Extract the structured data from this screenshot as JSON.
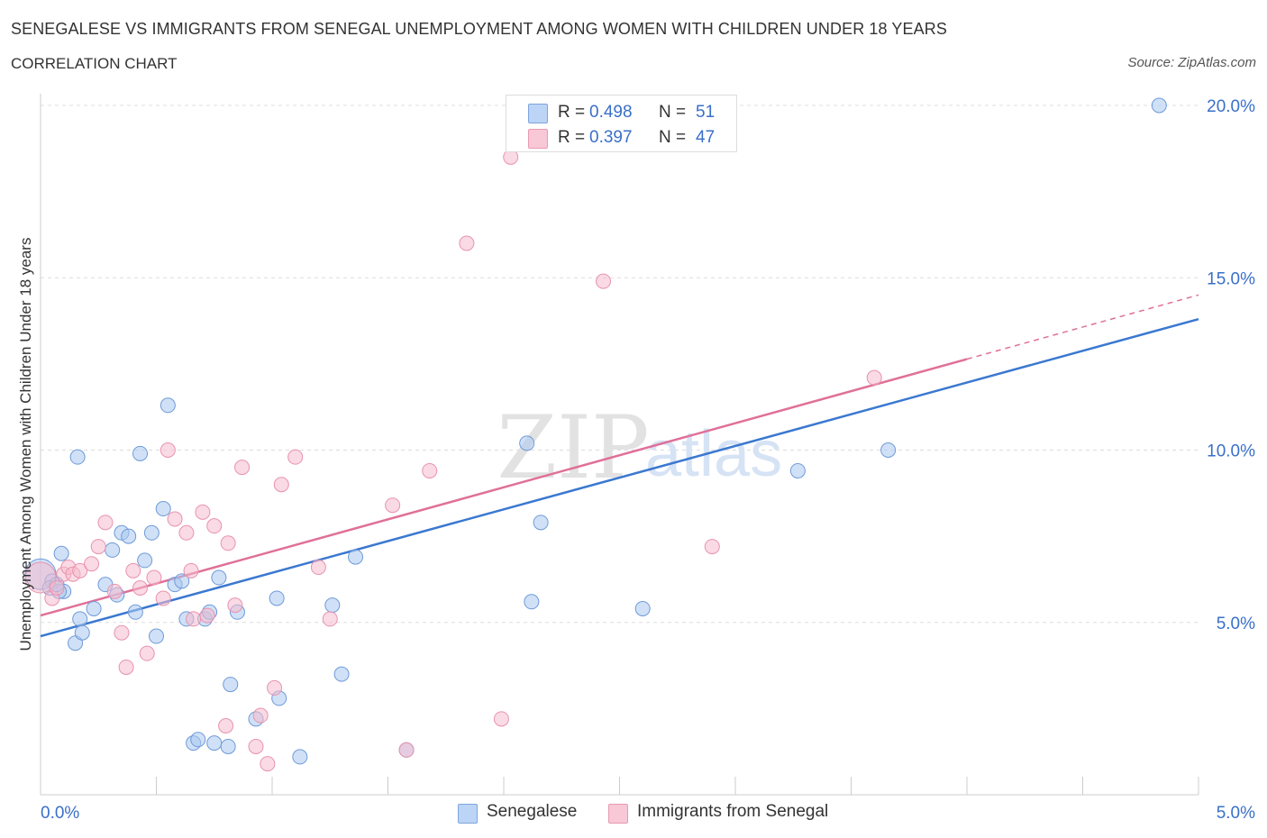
{
  "header": {
    "title": "SENEGALESE VS IMMIGRANTS FROM SENEGAL UNEMPLOYMENT AMONG WOMEN WITH CHILDREN UNDER 18 YEARS",
    "subtitle": "CORRELATION CHART",
    "source": "Source: ZipAtlas.com"
  },
  "watermark": {
    "zip": "ZIP",
    "atlas": "atlas"
  },
  "stats_legend": {
    "rows": [
      {
        "r_label": "R =",
        "r_value": "0.498",
        "n_label": "N =",
        "n_value": "51"
      },
      {
        "r_label": "R =",
        "r_value": "0.397",
        "n_label": "N =",
        "n_value": "47"
      }
    ]
  },
  "colors": {
    "series1_fill": "#aac8f0",
    "series1_stroke": "#6e9ad8",
    "series1_line": "#3a78d0",
    "series2_fill": "#f6bccd",
    "series2_stroke": "#e893ae",
    "series2_line": "#e07098",
    "axis_text": "#3a6fc9",
    "grid": "#dddddd"
  },
  "chart_data": {
    "type": "scatter",
    "title": "SENEGALESE VS IMMIGRANTS FROM SENEGAL UNEMPLOYMENT AMONG WOMEN WITH CHILDREN UNDER 18 YEARS",
    "xlabel": "",
    "ylabel": "Unemployment Among Women with Children Under 18 years",
    "xlim": [
      0,
      5
    ],
    "ylim": [
      0,
      20
    ],
    "x_tick_labels": [
      "0.0%",
      "5.0%"
    ],
    "y_ticks": [
      5,
      10,
      15,
      20
    ],
    "y_tick_labels": [
      "5.0%",
      "10.0%",
      "15.0%",
      "20.0%"
    ],
    "grid": "horizontal dashed",
    "legend_position": "bottom-center",
    "series": [
      {
        "name": "Senegalese",
        "R": 0.498,
        "N": 51,
        "trend": {
          "x0": 0.0,
          "y0": 4.6,
          "x1": 5.0,
          "y1": 13.8,
          "dashed_from": null
        },
        "points": [
          [
            0.0,
            6.4
          ],
          [
            0.05,
            6.2
          ],
          [
            0.1,
            5.9
          ],
          [
            0.09,
            7.0
          ],
          [
            0.15,
            4.4
          ],
          [
            0.17,
            5.1
          ],
          [
            0.23,
            5.4
          ],
          [
            0.18,
            4.7
          ],
          [
            0.28,
            6.1
          ],
          [
            0.31,
            7.1
          ],
          [
            0.33,
            5.8
          ],
          [
            0.35,
            7.6
          ],
          [
            0.38,
            7.5
          ],
          [
            0.41,
            5.3
          ],
          [
            0.45,
            6.8
          ],
          [
            0.48,
            7.6
          ],
          [
            0.5,
            4.6
          ],
          [
            0.53,
            8.3
          ],
          [
            0.55,
            11.3
          ],
          [
            0.58,
            6.1
          ],
          [
            0.61,
            6.2
          ],
          [
            0.63,
            5.1
          ],
          [
            0.66,
            1.5
          ],
          [
            0.68,
            1.6
          ],
          [
            0.71,
            5.1
          ],
          [
            0.73,
            5.3
          ],
          [
            0.75,
            1.5
          ],
          [
            0.77,
            6.3
          ],
          [
            0.81,
            1.4
          ],
          [
            0.82,
            3.2
          ],
          [
            0.85,
            5.3
          ],
          [
            0.93,
            2.2
          ],
          [
            1.02,
            5.7
          ],
          [
            1.03,
            2.8
          ],
          [
            1.12,
            1.1
          ],
          [
            1.26,
            5.5
          ],
          [
            1.3,
            3.5
          ],
          [
            1.36,
            6.9
          ],
          [
            1.58,
            1.3
          ],
          [
            2.1,
            10.2
          ],
          [
            2.12,
            5.6
          ],
          [
            2.16,
            7.9
          ],
          [
            2.6,
            5.4
          ],
          [
            3.27,
            9.4
          ],
          [
            3.66,
            10.0
          ],
          [
            4.83,
            20.0
          ],
          [
            0.16,
            9.8
          ],
          [
            0.43,
            9.9
          ],
          [
            0.04,
            6.0
          ],
          [
            0.08,
            5.9
          ],
          [
            0.07,
            6.1
          ]
        ]
      },
      {
        "name": "Immigrants from Senegal",
        "R": 0.397,
        "N": 47,
        "trend": {
          "x0": 0.0,
          "y0": 5.2,
          "x1": 5.0,
          "y1": 14.5,
          "dashed_from": 4.0
        },
        "points": [
          [
            0.0,
            6.3
          ],
          [
            0.05,
            5.7
          ],
          [
            0.07,
            6.0
          ],
          [
            0.1,
            6.4
          ],
          [
            0.12,
            6.6
          ],
          [
            0.14,
            6.4
          ],
          [
            0.17,
            6.5
          ],
          [
            0.22,
            6.7
          ],
          [
            0.25,
            7.2
          ],
          [
            0.28,
            7.9
          ],
          [
            0.32,
            5.9
          ],
          [
            0.35,
            4.7
          ],
          [
            0.37,
            3.7
          ],
          [
            0.4,
            6.5
          ],
          [
            0.43,
            6.0
          ],
          [
            0.46,
            4.1
          ],
          [
            0.49,
            6.3
          ],
          [
            0.53,
            5.7
          ],
          [
            0.55,
            10.0
          ],
          [
            0.58,
            8.0
          ],
          [
            0.63,
            7.6
          ],
          [
            0.65,
            6.5
          ],
          [
            0.7,
            8.2
          ],
          [
            0.72,
            5.2
          ],
          [
            0.75,
            7.8
          ],
          [
            0.8,
            2.0
          ],
          [
            0.81,
            7.3
          ],
          [
            0.84,
            5.5
          ],
          [
            0.87,
            9.5
          ],
          [
            0.93,
            1.4
          ],
          [
            0.95,
            2.3
          ],
          [
            0.98,
            0.9
          ],
          [
            1.01,
            3.1
          ],
          [
            1.04,
            9.0
          ],
          [
            1.1,
            9.8
          ],
          [
            1.2,
            6.6
          ],
          [
            1.25,
            5.1
          ],
          [
            1.52,
            8.4
          ],
          [
            1.58,
            1.3
          ],
          [
            1.68,
            9.4
          ],
          [
            1.84,
            16.0
          ],
          [
            2.03,
            18.5
          ],
          [
            1.99,
            2.2
          ],
          [
            2.43,
            14.9
          ],
          [
            2.9,
            7.2
          ],
          [
            3.6,
            12.1
          ],
          [
            0.66,
            5.1
          ]
        ]
      }
    ]
  },
  "legend": {
    "items": [
      {
        "label": "Senegalese"
      },
      {
        "label": "Immigrants from Senegal"
      }
    ]
  }
}
